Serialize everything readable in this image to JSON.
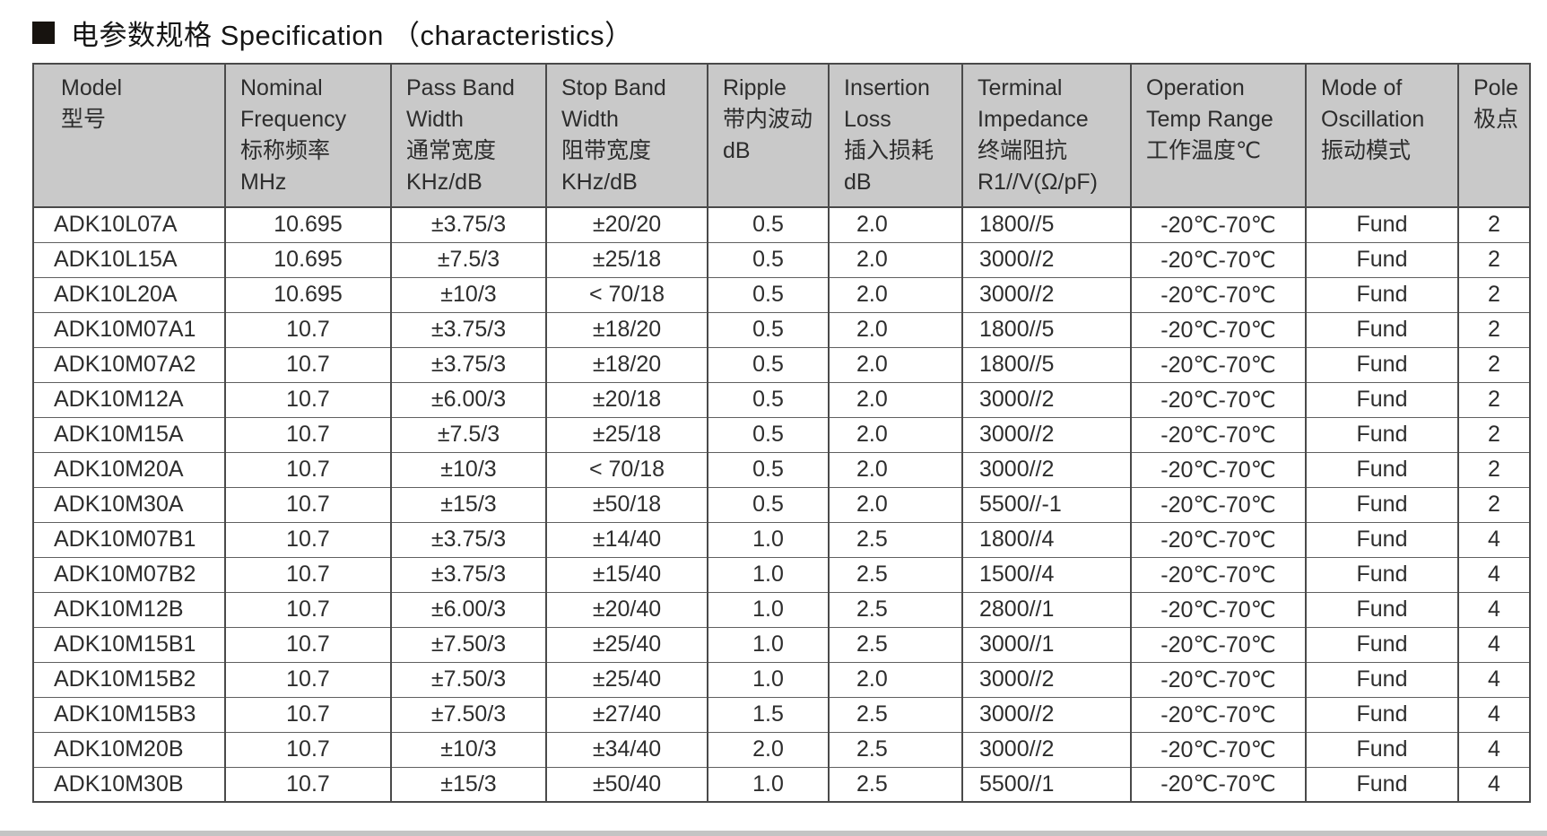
{
  "title": {
    "text": "电参数规格 Specification （characteristics）"
  },
  "colors": {
    "header_bg": "#c9c9c9",
    "border": "#4a4a4a",
    "row_line": "#606060",
    "text": "#2d2d2d",
    "bottom_strip": "#c4c4c4",
    "title_text": "#151515"
  },
  "table": {
    "headers": [
      {
        "id": "model",
        "lines": [
          "Model",
          "型号"
        ]
      },
      {
        "id": "nominal-frequency",
        "lines": [
          "Nominal",
          "Frequency",
          "标称频率",
          "MHz"
        ]
      },
      {
        "id": "pass-band-width",
        "lines": [
          "Pass Band",
          "Width",
          "通常宽度",
          "KHz/dB"
        ]
      },
      {
        "id": "stop-band-width",
        "lines": [
          "Stop Band",
          "Width",
          "阻带宽度",
          "KHz/dB"
        ]
      },
      {
        "id": "ripple",
        "lines": [
          "Ripple",
          "带内波动",
          "dB"
        ]
      },
      {
        "id": "insertion-loss",
        "lines": [
          "Insertion",
          "Loss",
          "插入损耗",
          "dB"
        ]
      },
      {
        "id": "terminal-impedance",
        "lines": [
          "Terminal",
          "Impedance",
          "终端阻抗",
          "R1//V(Ω/pF)"
        ]
      },
      {
        "id": "operation-temp-range",
        "lines": [
          "Operation",
          "Temp Range",
          "工作温度℃"
        ]
      },
      {
        "id": "mode-of-oscillation",
        "lines": [
          "Mode of",
          "Oscillation",
          "振动模式"
        ]
      },
      {
        "id": "pole",
        "lines": [
          "Pole",
          "极点"
        ]
      }
    ],
    "rows": [
      [
        "ADK10L07A",
        "10.695",
        "±3.75/3",
        "±20/20",
        "0.5",
        "2.0",
        "1800//5",
        "-20℃-70℃",
        "Fund",
        "2"
      ],
      [
        "ADK10L15A",
        "10.695",
        "±7.5/3",
        "±25/18",
        "0.5",
        "2.0",
        "3000//2",
        "-20℃-70℃",
        "Fund",
        "2"
      ],
      [
        "ADK10L20A",
        "10.695",
        "±10/3",
        "< 70/18",
        "0.5",
        "2.0",
        "3000//2",
        "-20℃-70℃",
        "Fund",
        "2"
      ],
      [
        "ADK10M07A1",
        "10.7",
        "±3.75/3",
        "±18/20",
        "0.5",
        "2.0",
        "1800//5",
        "-20℃-70℃",
        "Fund",
        "2"
      ],
      [
        "ADK10M07A2",
        "10.7",
        "±3.75/3",
        "±18/20",
        "0.5",
        "2.0",
        "1800//5",
        "-20℃-70℃",
        "Fund",
        "2"
      ],
      [
        "ADK10M12A",
        "10.7",
        "±6.00/3",
        "±20/18",
        "0.5",
        "2.0",
        "3000//2",
        "-20℃-70℃",
        "Fund",
        "2"
      ],
      [
        "ADK10M15A",
        "10.7",
        "±7.5/3",
        "±25/18",
        "0.5",
        "2.0",
        "3000//2",
        "-20℃-70℃",
        "Fund",
        "2"
      ],
      [
        "ADK10M20A",
        "10.7",
        "±10/3",
        "< 70/18",
        "0.5",
        "2.0",
        "3000//2",
        "-20℃-70℃",
        "Fund",
        "2"
      ],
      [
        "ADK10M30A",
        "10.7",
        "±15/3",
        "±50/18",
        "0.5",
        "2.0",
        "5500//-1",
        "-20℃-70℃",
        "Fund",
        "2"
      ],
      [
        "ADK10M07B1",
        "10.7",
        "±3.75/3",
        "±14/40",
        "1.0",
        "2.5",
        "1800//4",
        "-20℃-70℃",
        "Fund",
        "4"
      ],
      [
        "ADK10M07B2",
        "10.7",
        "±3.75/3",
        "±15/40",
        "1.0",
        "2.5",
        "1500//4",
        "-20℃-70℃",
        "Fund",
        "4"
      ],
      [
        "ADK10M12B",
        "10.7",
        "±6.00/3",
        "±20/40",
        "1.0",
        "2.5",
        "2800//1",
        "-20℃-70℃",
        "Fund",
        "4"
      ],
      [
        "ADK10M15B1",
        "10.7",
        "±7.50/3",
        "±25/40",
        "1.0",
        "2.5",
        "3000//1",
        "-20℃-70℃",
        "Fund",
        "4"
      ],
      [
        "ADK10M15B2",
        "10.7",
        "±7.50/3",
        "±25/40",
        "1.0",
        "2.0",
        "3000//2",
        "-20℃-70℃",
        "Fund",
        "4"
      ],
      [
        "ADK10M15B3",
        "10.7",
        "±7.50/3",
        "±27/40",
        "1.5",
        "2.5",
        "3000//2",
        "-20℃-70℃",
        "Fund",
        "4"
      ],
      [
        "ADK10M20B",
        "10.7",
        "±10/3",
        "±34/40",
        "2.0",
        "2.5",
        "3000//2",
        "-20℃-70℃",
        "Fund",
        "4"
      ],
      [
        "ADK10M30B",
        "10.7",
        "±15/3",
        "±50/40",
        "1.0",
        "2.5",
        "5500//1",
        "-20℃-70℃",
        "Fund",
        "4"
      ]
    ]
  }
}
